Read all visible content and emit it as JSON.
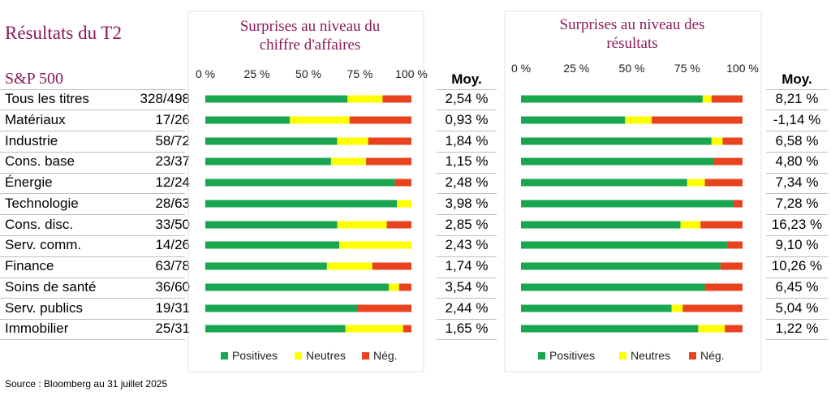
{
  "title": "Résultats du T2",
  "index_label": "S&P 500",
  "source": "Source : Bloomberg au 31 juillet 2025",
  "sectors": [
    {
      "name": "Tous les titres",
      "ratio": "328/498"
    },
    {
      "name": "Matériaux",
      "ratio": "17/26"
    },
    {
      "name": "Industrie",
      "ratio": "58/72"
    },
    {
      "name": "Cons. base",
      "ratio": "23/37"
    },
    {
      "name": "Énergie",
      "ratio": "12/24"
    },
    {
      "name": "Technologie",
      "ratio": "28/63"
    },
    {
      "name": "Cons. disc.",
      "ratio": "33/50"
    },
    {
      "name": "Serv. comm.",
      "ratio": "14/26"
    },
    {
      "name": "Finance",
      "ratio": "63/78"
    },
    {
      "name": "Soins de santé",
      "ratio": "36/60"
    },
    {
      "name": "Serv. publics",
      "ratio": "19/31"
    },
    {
      "name": "Immobilier",
      "ratio": "25/31"
    }
  ],
  "colors": {
    "positive": "#1aa64e",
    "neutral": "#ffff00",
    "negative": "#e8431e"
  },
  "chart_data": [
    {
      "type": "bar",
      "orientation": "horizontal",
      "stacked": true,
      "title": "Surprises au niveau du chiffre d'affaires",
      "title_lines": [
        "Surprises au niveau du",
        "chiffre d'affaires"
      ],
      "xlim": [
        0,
        100
      ],
      "ticks": [
        "0 %",
        "25 %",
        "50 %",
        "75 %",
        "100 %"
      ],
      "legend": [
        "Positives",
        "Neutres",
        "Nég."
      ],
      "legend_position": "bottom",
      "avg_header": "Moy.",
      "categories": [
        "Tous les titres",
        "Matériaux",
        "Industrie",
        "Cons. base",
        "Énergie",
        "Technologie",
        "Cons. disc.",
        "Serv. comm.",
        "Finance",
        "Soins de santé",
        "Serv. publics",
        "Immobilier"
      ],
      "series": [
        {
          "name": "Positives",
          "values": [
            69,
            41,
            64,
            61,
            92,
            93,
            64,
            65,
            59,
            89,
            74,
            68
          ]
        },
        {
          "name": "Neutres",
          "values": [
            17,
            29,
            15,
            17,
            0,
            7,
            24,
            35,
            22,
            5,
            0,
            28
          ]
        },
        {
          "name": "Nég.",
          "values": [
            14,
            30,
            21,
            22,
            8,
            0,
            12,
            0,
            19,
            6,
            26,
            4
          ]
        }
      ],
      "averages": [
        "2,54 %",
        "0,93 %",
        "1,84 %",
        "1,15 %",
        "2,48 %",
        "3,98 %",
        "2,85 %",
        "2,43 %",
        "1,74 %",
        "3,54 %",
        "2,44 %",
        "1,65 %"
      ]
    },
    {
      "type": "bar",
      "orientation": "horizontal",
      "stacked": true,
      "title": "Surprises au niveau des résultats",
      "title_lines": [
        "Surprises au niveau des",
        "résultats"
      ],
      "xlim": [
        0,
        100
      ],
      "ticks": [
        "0 %",
        "25 %",
        "50 %",
        "75 %",
        "100 %"
      ],
      "legend": [
        "Positives",
        "Neutres",
        "Nég."
      ],
      "legend_position": "bottom",
      "avg_header": "Moy.",
      "categories": [
        "Tous les titres",
        "Matériaux",
        "Industrie",
        "Cons. base",
        "Énergie",
        "Technologie",
        "Cons. disc.",
        "Serv. comm.",
        "Finance",
        "Soins de santé",
        "Serv. publics",
        "Immobilier"
      ],
      "series": [
        {
          "name": "Positives",
          "values": [
            82,
            47,
            86,
            87,
            75,
            96,
            72,
            93,
            90,
            83,
            68,
            80
          ]
        },
        {
          "name": "Neutres",
          "values": [
            4,
            12,
            5,
            0,
            8,
            0,
            9,
            0,
            0,
            0,
            5,
            12
          ]
        },
        {
          "name": "Nég.",
          "values": [
            14,
            41,
            9,
            13,
            17,
            4,
            19,
            7,
            10,
            17,
            27,
            8
          ]
        }
      ],
      "averages": [
        "8,21 %",
        "-1,14 %",
        "6,58 %",
        "4,80 %",
        "7,34 %",
        "7,28 %",
        "16,23 %",
        "9,10 %",
        "10,26 %",
        "6,45 %",
        "5,04 %",
        "1,22 %"
      ]
    }
  ]
}
